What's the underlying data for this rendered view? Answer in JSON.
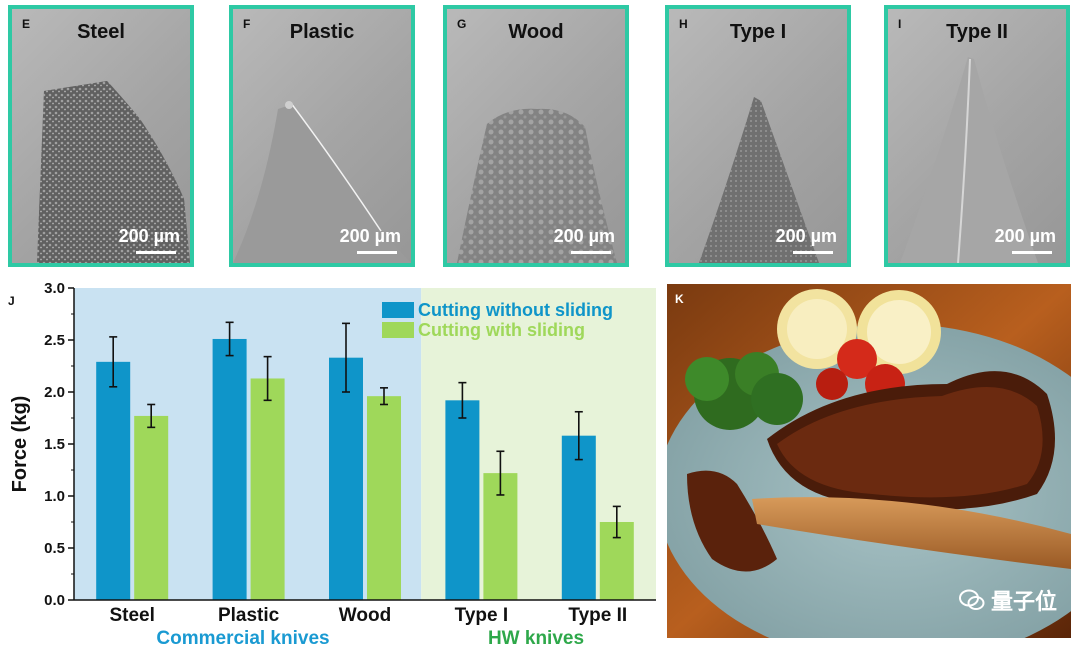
{
  "panels": [
    {
      "letter": "E",
      "title": "Steel",
      "scale": "200 µm"
    },
    {
      "letter": "F",
      "title": "Plastic",
      "scale": "200 µm"
    },
    {
      "letter": "G",
      "title": "Wood",
      "scale": "200 µm"
    },
    {
      "letter": "H",
      "title": "Type I",
      "scale": "200 µm"
    },
    {
      "letter": "I",
      "title": "Type II",
      "scale": "200 µm"
    }
  ],
  "chart_panel_letter": "J",
  "photo_panel_letter": "K",
  "watermark": "量子位",
  "colors": {
    "frame": "#2ec9a4",
    "series_without": "#0f95c9",
    "series_with": "#9fd85a",
    "bg_commercial": "#c9e2f2",
    "bg_hw": "#e7f3d9",
    "commercial_label": "#1a9ad2",
    "hw_label": "#2ea84a"
  },
  "chart_data": {
    "type": "bar",
    "categories": [
      "Steel",
      "Plastic",
      "Wood",
      "Type I",
      "Type II"
    ],
    "series": [
      {
        "name": "Cutting without sliding",
        "values": [
          2.29,
          2.51,
          2.33,
          1.92,
          1.58
        ],
        "errors": [
          0.24,
          0.16,
          0.33,
          0.17,
          0.23
        ]
      },
      {
        "name": "Cutting with sliding",
        "values": [
          1.77,
          2.13,
          1.96,
          1.22,
          0.75
        ],
        "errors": [
          0.11,
          0.21,
          0.08,
          0.21,
          0.15
        ]
      }
    ],
    "ylabel": "Force (kg)",
    "ylim": [
      0,
      3.0
    ],
    "yticks": [
      "0.0",
      "0.5",
      "1.0",
      "1.5",
      "2.0",
      "2.5",
      "3.0"
    ],
    "groups": [
      {
        "label": "Commercial knives",
        "categories": [
          "Steel",
          "Plastic",
          "Wood"
        ]
      },
      {
        "label": "HW knives",
        "categories": [
          "Type I",
          "Type II"
        ]
      }
    ],
    "legend_position": "top-right"
  }
}
